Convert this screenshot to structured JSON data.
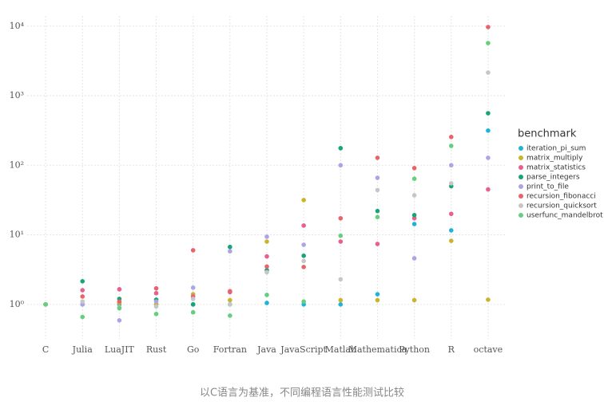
{
  "chart_data": {
    "type": "scatter",
    "caption": "以C语言为基准，不同编程语言性能测试比较",
    "legend_title": "benchmark",
    "legend_position": "right",
    "log_scale": true,
    "grid": true,
    "categories": [
      "C",
      "Julia",
      "LuaJIT",
      "Rust",
      "Go",
      "Fortran",
      "Java",
      "JavaScript",
      "Matlab",
      "Mathematica",
      "Python",
      "R",
      "octave"
    ],
    "ylim": [
      0.32,
      14000
    ],
    "yticks": [
      {
        "value": 1,
        "label": "10⁰"
      },
      {
        "value": 10,
        "label": "10¹"
      },
      {
        "value": 100,
        "label": "10²"
      },
      {
        "value": 1000,
        "label": "10³"
      },
      {
        "value": 10000,
        "label": "10⁴"
      }
    ],
    "series": [
      {
        "name": "iteration_pi_sum",
        "color": "#1db4d8",
        "values": [
          1,
          1,
          1,
          1,
          1,
          1,
          1.05,
          1,
          1,
          1.4,
          14.3,
          11.6,
          315
        ]
      },
      {
        "name": "matrix_multiply",
        "color": "#c9b42c",
        "values": [
          1,
          1,
          1.05,
          1,
          1.4,
          1.15,
          8,
          31.6,
          1.15,
          1.15,
          1.15,
          8.2,
          1.17
        ]
      },
      {
        "name": "matrix_statistics",
        "color": "#e9608f",
        "values": [
          1,
          1.6,
          1.65,
          1.45,
          1.3,
          1.5,
          4.9,
          13.6,
          8,
          7.4,
          17.3,
          20,
          45
        ]
      },
      {
        "name": "parse_integers",
        "color": "#17a47a",
        "values": [
          1,
          2.15,
          1.2,
          1.17,
          1,
          6.7,
          3.1,
          5,
          176,
          22,
          19.2,
          50,
          560
        ]
      },
      {
        "name": "print_to_file",
        "color": "#aba5e8",
        "values": [
          1,
          1,
          0.59,
          1.1,
          1.74,
          5.8,
          9.4,
          7.2,
          100,
          66,
          4.6,
          100,
          128
        ]
      },
      {
        "name": "recursion_fibonacci",
        "color": "#e8646a",
        "values": [
          1,
          1.3,
          1.1,
          1.7,
          6,
          1.55,
          3.5,
          3.45,
          17.3,
          128,
          91,
          255,
          9700
        ]
      },
      {
        "name": "recursion_quicksort",
        "color": "#c6c6c6",
        "values": [
          1,
          1.1,
          0.9,
          0.93,
          1.2,
          1,
          2.9,
          4.2,
          2.3,
          44,
          37,
          55,
          2150
        ]
      },
      {
        "name": "userfunc_mandelbrot",
        "color": "#66cf7f",
        "values": [
          1,
          0.66,
          0.88,
          0.73,
          0.77,
          0.69,
          1.37,
          1.1,
          9.7,
          18,
          64,
          190,
          5700
        ]
      }
    ]
  }
}
